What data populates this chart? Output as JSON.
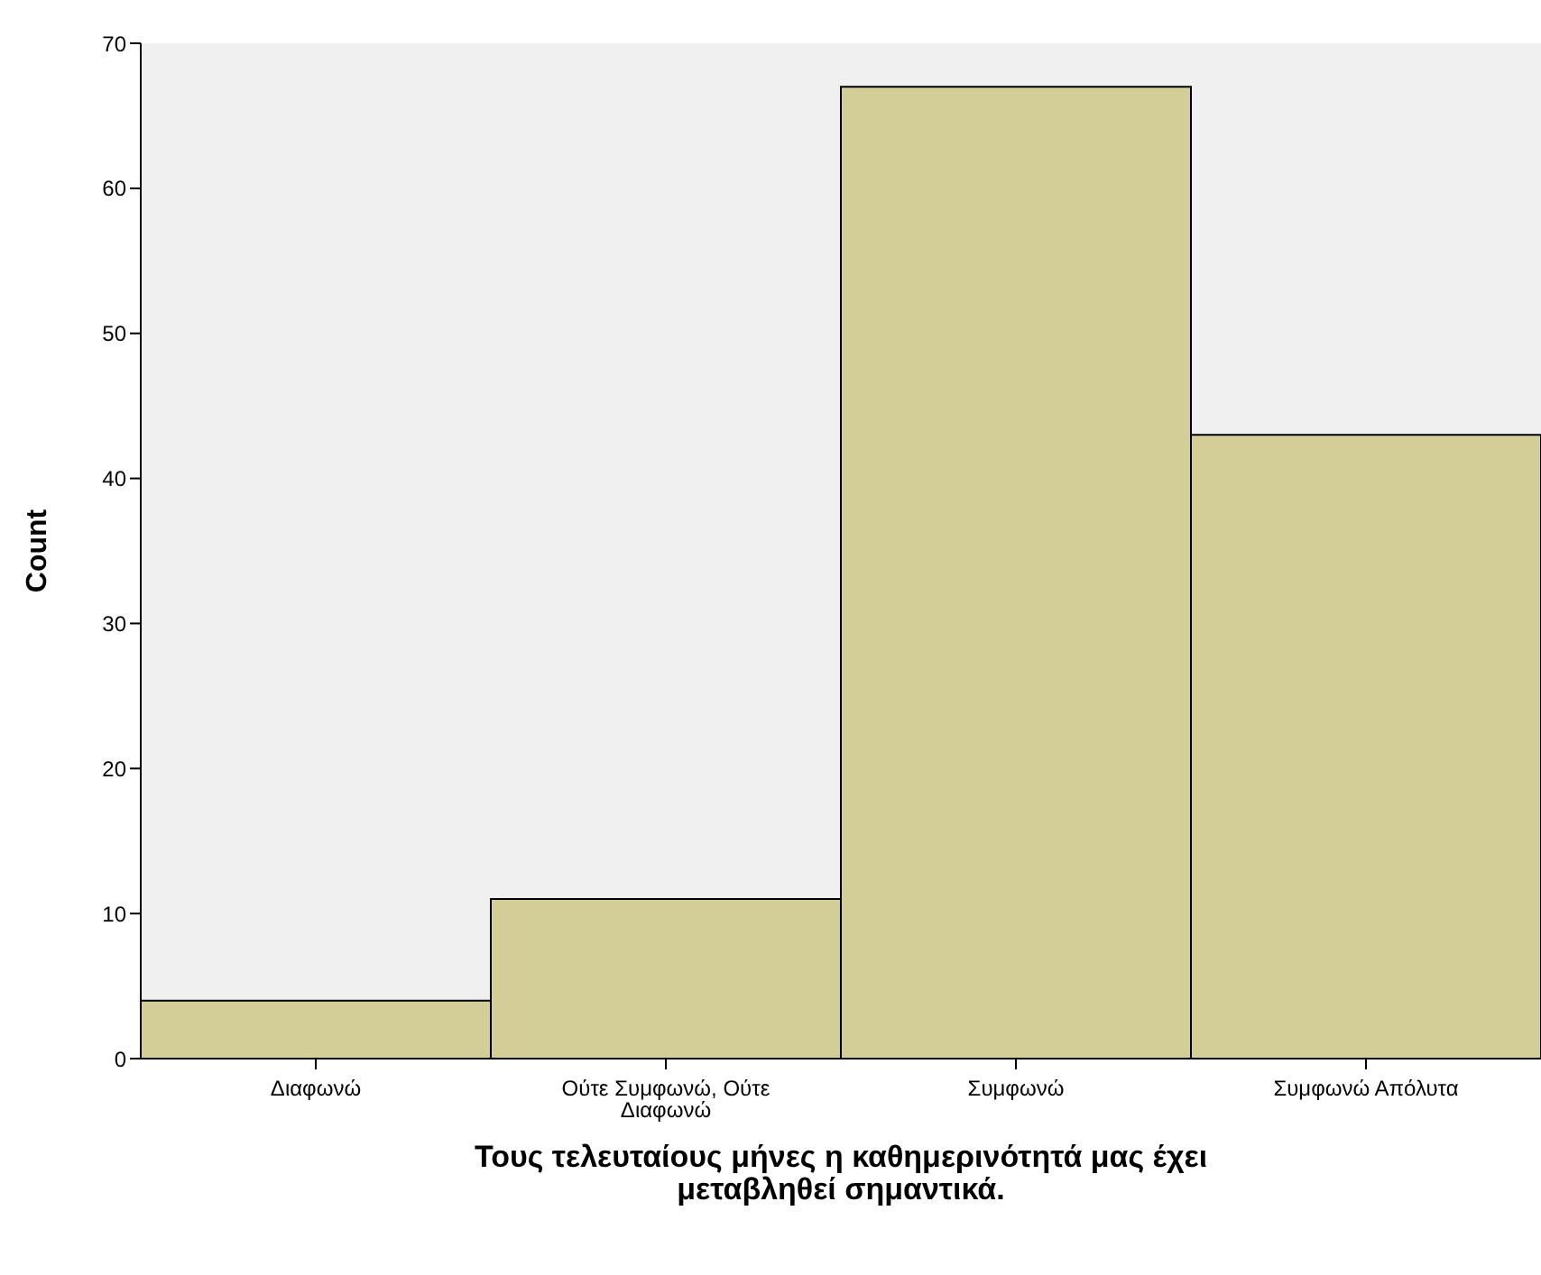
{
  "chart_data": {
    "type": "bar",
    "xlabel": "Τους τελευταίους μήνες η καθημερινότητά μας έχει μεταβληθεί σημαντικά.",
    "ylabel": "Count",
    "categories": [
      "Διαφωνώ",
      "Ούτε Συμφωνώ, Ούτε Διαφωνώ",
      "Συμφωνώ",
      "Συμφωνώ Απόλυτα"
    ],
    "values": [
      4,
      11,
      67,
      43
    ],
    "color": "#d3ce97",
    "ylim": [
      0,
      70
    ],
    "yticks": [
      0,
      10,
      20,
      30,
      40,
      50,
      60,
      70
    ]
  }
}
